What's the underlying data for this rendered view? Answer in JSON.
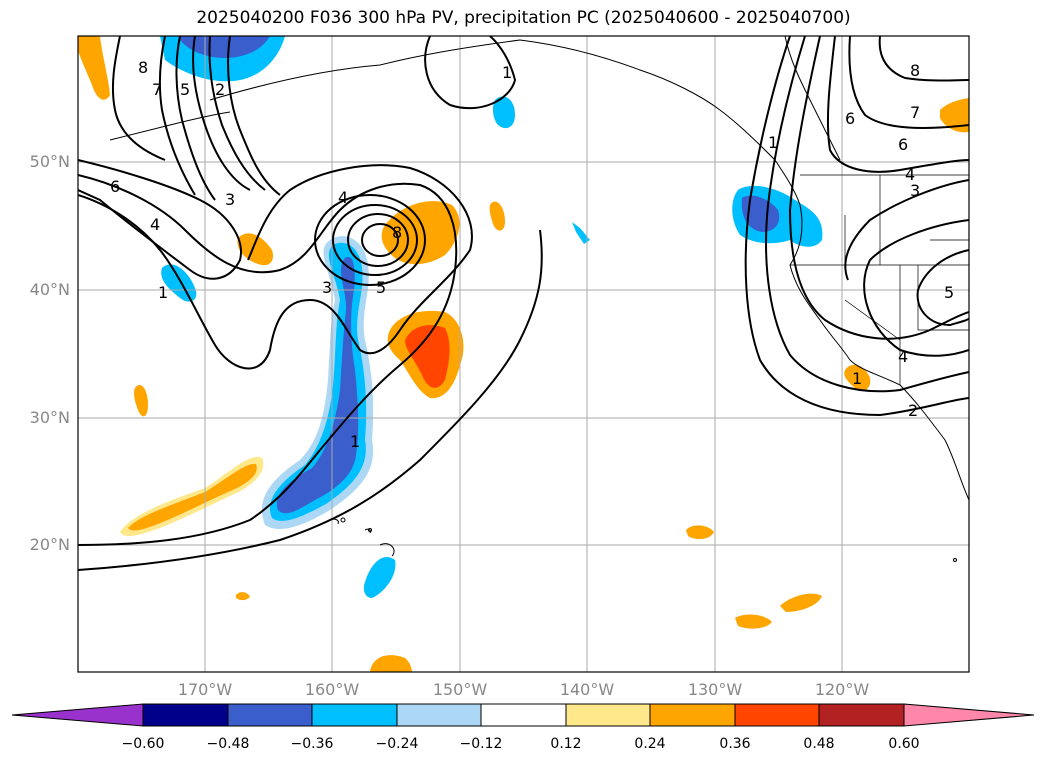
{
  "title": "2025040200 F036 300 hPa PV, precipitation PC (2025040600 - 2025040700)",
  "axes": {
    "lat_labels": [
      "50°N",
      "40°N",
      "30°N",
      "20°N"
    ],
    "lon_labels": [
      "170°W",
      "160°W",
      "150°W",
      "140°W",
      "130°W",
      "120°W"
    ]
  },
  "pv_contour_labels": [
    "8",
    "7",
    "5",
    "2",
    "1",
    "6",
    "4",
    "3",
    "1",
    "4",
    "8",
    "5",
    "3",
    "1",
    "1",
    "6",
    "8",
    "7",
    "6",
    "4",
    "3",
    "5",
    "4",
    "2",
    "1"
  ],
  "colorbar": {
    "ticks": [
      "−0.60",
      "−0.48",
      "−0.36",
      "−0.24",
      "−0.12",
      "0.12",
      "0.24",
      "0.36",
      "0.48",
      "0.60"
    ],
    "colors": [
      "#9932cc",
      "#00008b",
      "#3a5fcd",
      "#00bfff",
      "#add8f5",
      "#ffffff",
      "#ffe88c",
      "#ffa500",
      "#ff4500",
      "#b22222",
      "#ff88aa"
    ]
  }
}
